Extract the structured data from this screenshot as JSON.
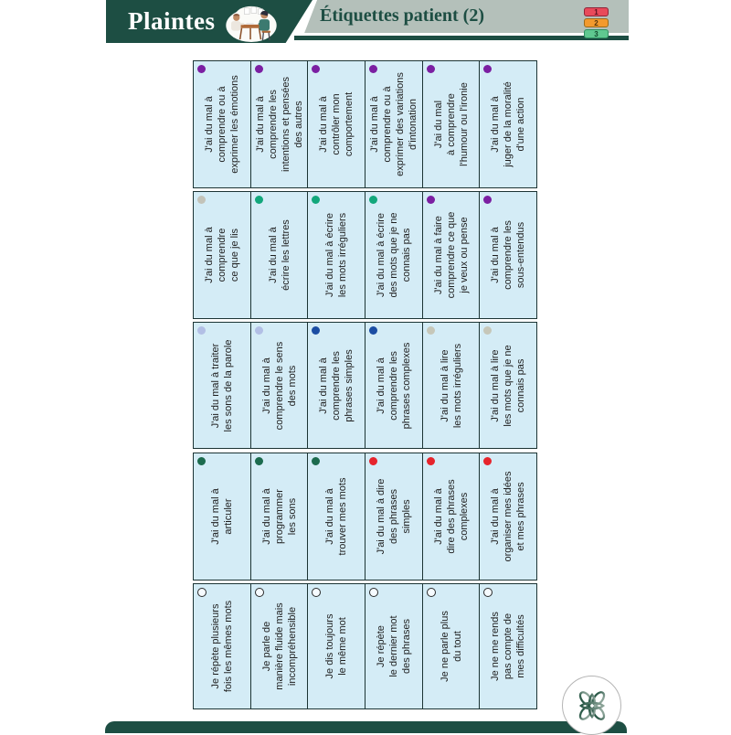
{
  "page": {
    "title": "Plaintes",
    "subtitle": "Étiquettes patient (2)"
  },
  "header": {
    "illustration": "consultation-scene",
    "tabs": [
      {
        "label": "1",
        "color": "#e84a5a",
        "border": "#8f2438",
        "text_color": "#55101e"
      },
      {
        "label": "2",
        "color": "#f39a2e",
        "border": "#9c6a1c",
        "text_color": "#54350c"
      },
      {
        "label": "3",
        "color": "#5fc890",
        "border": "#2f8f60",
        "text_color": "#124a2c"
      }
    ]
  },
  "colors": {
    "accent": "#1d4e43",
    "band": "#b4c0ba",
    "cellbg": "#d4ecf6",
    "cellborder": "#1c3434",
    "celltext": "#1d1d1d"
  },
  "dot_legend": {
    "purple": "#7b1fa2",
    "silver": "#c3c3b9",
    "green": "#12a77b",
    "periwinkle": "#b2bfe5",
    "navy": "#1b4da3",
    "beige": "#c6c7b9",
    "dark_green": "#1c6b4e",
    "red": "#e6242c",
    "open": "open"
  },
  "table": {
    "rows": [
      {
        "cells": [
          {
            "text": "J'ai du mal à\ncomprendre ou à\nexprimer les émotions",
            "dot": "#7b1fa2"
          },
          {
            "text": "J'ai du mal à\ncomprendre les\nintentions et pensées\ndes autres",
            "dot": "#7b1fa2"
          },
          {
            "text": "J'ai du mal à\ncontrôler mon\ncomportement",
            "dot": "#7b1fa2"
          },
          {
            "text": "J'ai du mal à\ncomprendre ou à\nexprimer des variations\nd'intonation",
            "dot": "#7b1fa2"
          },
          {
            "text": "J'ai du mal\nà comprendre\nl'humour ou l'ironie",
            "dot": "#7b1fa2"
          },
          {
            "text": "J'ai du mal à\njuger de la moralité\nd'une action",
            "dot": "#7b1fa2"
          }
        ]
      },
      {
        "cells": [
          {
            "text": "J'ai du mal à\ncomprendre\nce que je lis",
            "dot": "#c3c3b9"
          },
          {
            "text": "J'ai du mal à\nécrire les lettres",
            "dot": "#12a77b"
          },
          {
            "text": "J'ai du mal à écrire\nles mots irréguliers",
            "dot": "#12a77b"
          },
          {
            "text": "J'ai du mal à écrire\ndes mots que je ne\nconnais pas",
            "dot": "#12a77b"
          },
          {
            "text": "J'ai du mal à faire\ncomprendre ce que\nje veux ou pense",
            "dot": "#7b1fa2"
          },
          {
            "text": "J'ai du mal à\ncomprendre les\nsous-entendus",
            "dot": "#7b1fa2"
          }
        ]
      },
      {
        "cells": [
          {
            "text": "J'ai du mal à traiter\nles sons de la parole",
            "dot": "#b2bfe5"
          },
          {
            "text": "J'ai du mal à\ncomprendre le sens\ndes mots",
            "dot": "#b2bfe5"
          },
          {
            "text": "J'ai du mal à\ncomprendre les\nphrases simples",
            "dot": "#1b4da3"
          },
          {
            "text": "J'ai du mal à\ncomprendre les\nphrases complexes",
            "dot": "#1b4da3"
          },
          {
            "text": "J'ai du mal à lire\nles mots irréguliers",
            "dot": "#c6c7b9"
          },
          {
            "text": "J'ai du mal à lire\nles mots que je ne\nconnais pas",
            "dot": "#c6c7b9"
          }
        ]
      },
      {
        "cells": [
          {
            "text": "J'ai du mal à\narticuler",
            "dot": "#1c6b4e"
          },
          {
            "text": "J'ai du mal à\nprogrammer\nles sons",
            "dot": "#1c6b4e"
          },
          {
            "text": "J'ai du mal à\ntrouver mes mots",
            "dot": "#1c6b4e"
          },
          {
            "text": "J'ai du mal à dire\ndes phrases\nsimples",
            "dot": "#e6242c"
          },
          {
            "text": "J'ai du mal à\ndire des phrases\ncomplexes",
            "dot": "#e6242c"
          },
          {
            "text": "J'ai du mal à\norganiser mes idées\net mes phrases",
            "dot": "#e6242c"
          }
        ]
      },
      {
        "cells": [
          {
            "text": "Je répète plusieurs\nfois les mêmes mots",
            "dot": "open"
          },
          {
            "text": "Je parle de\nmanière fluide mais\nincompréhensible",
            "dot": "open"
          },
          {
            "text": "Je dis toujours\nle même mot",
            "dot": "open"
          },
          {
            "text": "Je répète\nle dernier mot\ndes phrases",
            "dot": "open"
          },
          {
            "text": "Je ne parle plus\ndu tout",
            "dot": "open"
          },
          {
            "text": "Je ne me rends\npas compte de\nmes difficultés",
            "dot": "open"
          }
        ]
      }
    ]
  },
  "footer": {
    "logo": "knot-logo"
  }
}
